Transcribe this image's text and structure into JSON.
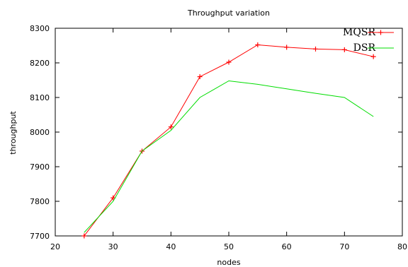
{
  "chart_data": {
    "type": "line",
    "title": "Throughput variation",
    "xlabel": "nodes",
    "ylabel": "throughput",
    "xlim": [
      20,
      80
    ],
    "ylim": [
      7700,
      8300
    ],
    "xticks": [
      20,
      30,
      40,
      50,
      60,
      70,
      80
    ],
    "yticks": [
      7700,
      7800,
      7900,
      8000,
      8100,
      8200,
      8300
    ],
    "grid": false,
    "legend_position": "top-right",
    "series": [
      {
        "name": "MQSR",
        "color": "#ff0000",
        "marker": "plus",
        "x": [
          25,
          30,
          35,
          40,
          45,
          50,
          55,
          60,
          65,
          70,
          75
        ],
        "y": [
          7700,
          7810,
          7945,
          8015,
          8160,
          8202,
          8252,
          8245,
          8240,
          8238,
          8218
        ]
      },
      {
        "name": "DSR",
        "color": "#00dd00",
        "marker": "none",
        "x": [
          25,
          30,
          35,
          40,
          45,
          50,
          55,
          60,
          65,
          70,
          75
        ],
        "y": [
          7710,
          7800,
          7945,
          8005,
          8100,
          8148,
          8138,
          8125,
          8112,
          8100,
          8045
        ]
      }
    ]
  }
}
